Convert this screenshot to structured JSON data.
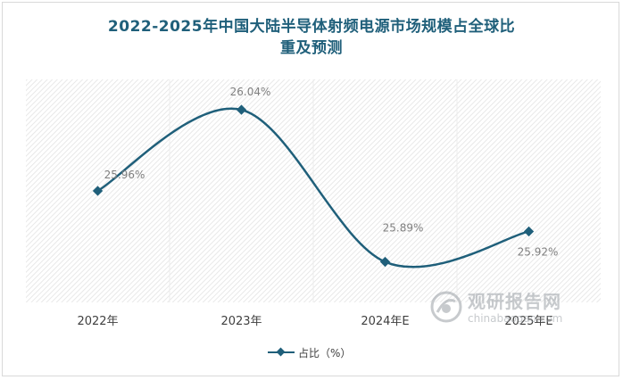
{
  "chart_data": {
    "type": "line",
    "title_line1": "2022-2025年中国大陆半导体射频电源市场规模占全球比",
    "title_line2": "重及预测",
    "categories": [
      "2022年",
      "2023年",
      "2024年E",
      "2025年E"
    ],
    "series": [
      {
        "name": "占比（%）",
        "values": [
          25.96,
          26.04,
          25.89,
          25.92
        ],
        "labels": [
          "25.96%",
          "26.04%",
          "25.89%",
          "25.92%"
        ],
        "color": "#1f5f7a"
      }
    ],
    "ylim": [
      25.85,
      26.07
    ],
    "grid": "vertical-category-bands",
    "legend_position": "bottom",
    "smooth": true
  },
  "watermark": {
    "text_cn": "观研报告网",
    "text_en": "chinabaogao.com"
  },
  "colors": {
    "title": "#1f5f7a",
    "line": "#1f5f7a",
    "label": "#7f7f7f",
    "axis_text": "#404040"
  }
}
